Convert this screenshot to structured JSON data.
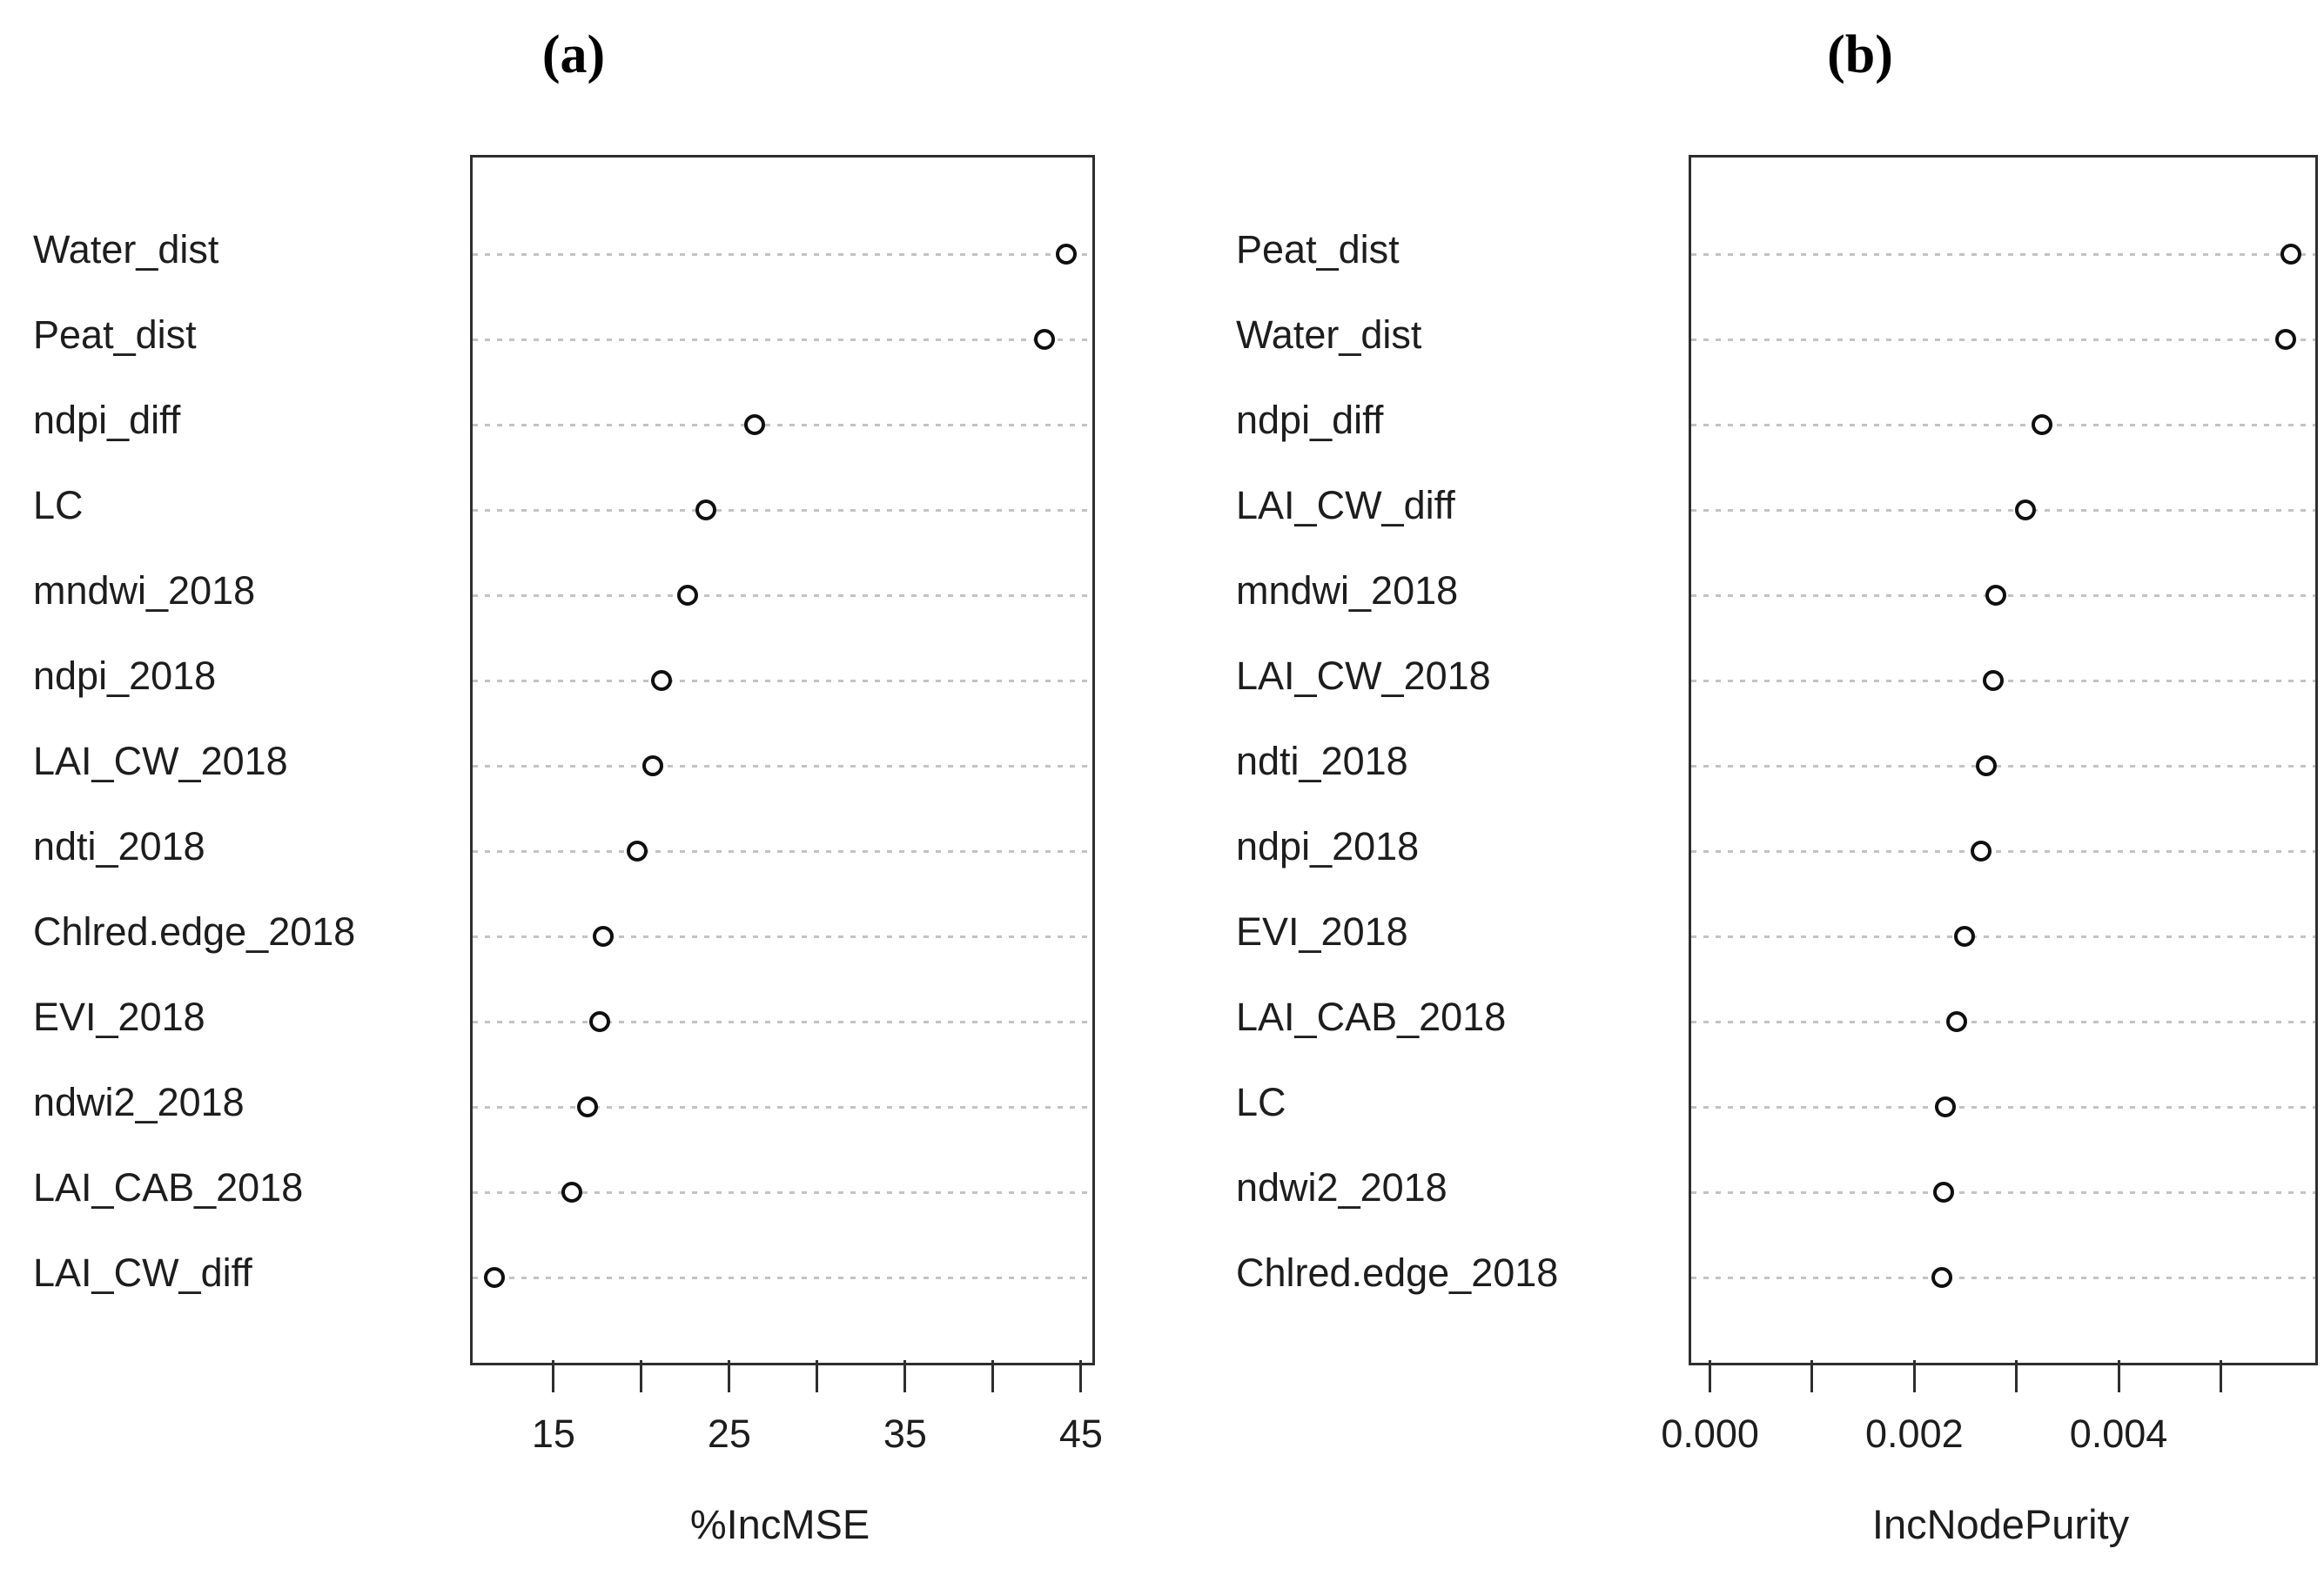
{
  "chart_data": [
    {
      "type": "scatter",
      "panel": "a",
      "title": "(a)",
      "xlabel": "%IncMSE",
      "xlim": [
        10.25,
        45.5
      ],
      "grid": "dotted-horizontal-leaders",
      "legend": "none",
      "marker": "open-circle",
      "ticks": [
        {
          "v": 15,
          "label": "15"
        },
        {
          "v": 20,
          "label": ""
        },
        {
          "v": 25,
          "label": "25"
        },
        {
          "v": 30,
          "label": ""
        },
        {
          "v": 35,
          "label": "35"
        },
        {
          "v": 40,
          "label": ""
        },
        {
          "v": 45,
          "label": "45"
        }
      ],
      "items": [
        {
          "label": "Water_dist",
          "value": 44.0
        },
        {
          "label": "Peat_dist",
          "value": 42.8
        },
        {
          "label": "ndpi_diff",
          "value": 26.3
        },
        {
          "label": "LC",
          "value": 23.5
        },
        {
          "label": "mndwi_2018",
          "value": 22.5
        },
        {
          "label": "ndpi_2018",
          "value": 21.0
        },
        {
          "label": "LAI_CW_2018",
          "value": 20.5
        },
        {
          "label": "ndti_2018",
          "value": 19.6
        },
        {
          "label": "Chlred.edge_2018",
          "value": 17.7
        },
        {
          "label": "EVI_2018",
          "value": 17.5
        },
        {
          "label": "ndwi2_2018",
          "value": 16.8
        },
        {
          "label": "LAI_CAB_2018",
          "value": 15.9
        },
        {
          "label": "LAI_CW_diff",
          "value": 11.5
        }
      ]
    },
    {
      "type": "scatter",
      "panel": "b",
      "title": "(b)",
      "xlabel": "IncNodePurity",
      "xlim": [
        -0.00021,
        0.0059
      ],
      "grid": "dotted-horizontal-leaders",
      "legend": "none",
      "marker": "open-circle",
      "ticks": [
        {
          "v": 0.0,
          "label": "0.000"
        },
        {
          "v": 0.001,
          "label": ""
        },
        {
          "v": 0.002,
          "label": "0.002"
        },
        {
          "v": 0.003,
          "label": ""
        },
        {
          "v": 0.004,
          "label": "0.004"
        },
        {
          "v": 0.005,
          "label": ""
        }
      ],
      "items": [
        {
          "label": "Peat_dist",
          "value": 0.00566
        },
        {
          "label": "Water_dist",
          "value": 0.00561
        },
        {
          "label": "ndpi_diff",
          "value": 0.00322
        },
        {
          "label": "LAI_CW_diff",
          "value": 0.00306
        },
        {
          "label": "mndwi_2018",
          "value": 0.00277
        },
        {
          "label": "LAI_CW_2018",
          "value": 0.00275
        },
        {
          "label": "ndti_2018",
          "value": 0.00268
        },
        {
          "label": "ndpi_2018",
          "value": 0.00263
        },
        {
          "label": "EVI_2018",
          "value": 0.00247
        },
        {
          "label": "LAI_CAB_2018",
          "value": 0.00239
        },
        {
          "label": "LC",
          "value": 0.00228
        },
        {
          "label": "ndwi2_2018",
          "value": 0.00226
        },
        {
          "label": "Chlred.edge_2018",
          "value": 0.00224
        }
      ]
    }
  ]
}
